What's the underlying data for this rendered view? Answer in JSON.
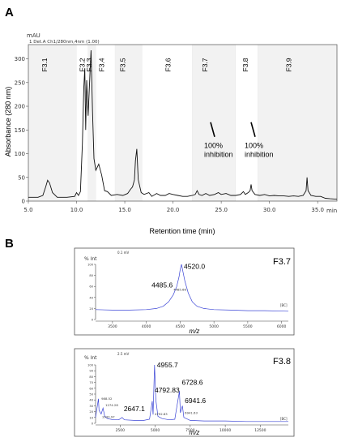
{
  "panel_labels": {
    "a": "A",
    "b": "B"
  },
  "chart_data": [
    {
      "type": "line",
      "panel": "A",
      "header_unit": "mAU",
      "header_detector": "1 Det.A Ch1/280nm,4nm (1.00)",
      "ylabel": "Absorbance (280 nm)",
      "xlabel": "Retention time (min)",
      "x_axis_unit": "min",
      "xlim": [
        5.0,
        37.0
      ],
      "ylim": [
        0,
        330
      ],
      "x_ticks": [
        5.0,
        10.0,
        15.0,
        20.0,
        25.0,
        30.0,
        35.0
      ],
      "x_tick_labels": [
        "5.0",
        "10.0",
        "15.0",
        "20.0",
        "25.0",
        "30.0",
        "35.0"
      ],
      "y_ticks": [
        0,
        50,
        100,
        150,
        200,
        250,
        300
      ],
      "y_tick_labels": [
        "0",
        "50",
        "100",
        "150",
        "200",
        "250",
        "300"
      ],
      "fractions": [
        {
          "label": "F3.1",
          "x": 6.7,
          "start": 5.0,
          "end": 10.0
        },
        {
          "label": "F3.2",
          "x": 10.6,
          "start": 10.0,
          "end": 11.2
        },
        {
          "label": "F3.3",
          "x": 11.3,
          "start": 11.2,
          "end": 12.0
        },
        {
          "label": "F3.4",
          "x": 12.6,
          "start": 12.0,
          "end": 14.0
        },
        {
          "label": "F3.5",
          "x": 14.8,
          "start": 14.0,
          "end": 16.8
        },
        {
          "label": "F3.6",
          "x": 19.5,
          "start": 16.8,
          "end": 22.0
        },
        {
          "label": "F3.7",
          "x": 23.3,
          "start": 22.0,
          "end": 26.5
        },
        {
          "label": "F3.8",
          "x": 27.5,
          "start": 26.5,
          "end": 28.8
        },
        {
          "label": "F3.9",
          "x": 32.0,
          "start": 28.8,
          "end": 37.0
        }
      ],
      "annotations": [
        {
          "text": "100%",
          "text2": "inhibition",
          "x": 24.4,
          "y": 115
        },
        {
          "text": "100%",
          "text2": "inhibition",
          "x": 28.6,
          "y": 115
        }
      ],
      "trace": [
        [
          5.0,
          8
        ],
        [
          6.0,
          8
        ],
        [
          6.5,
          12
        ],
        [
          6.8,
          30
        ],
        [
          7.0,
          44
        ],
        [
          7.2,
          38
        ],
        [
          7.5,
          18
        ],
        [
          8.0,
          8
        ],
        [
          9.0,
          8
        ],
        [
          9.8,
          10
        ],
        [
          10.0,
          18
        ],
        [
          10.2,
          12
        ],
        [
          10.4,
          20
        ],
        [
          10.6,
          120
        ],
        [
          10.75,
          240
        ],
        [
          10.85,
          280
        ],
        [
          10.95,
          150
        ],
        [
          11.05,
          255
        ],
        [
          11.2,
          180
        ],
        [
          11.35,
          250
        ],
        [
          11.5,
          318
        ],
        [
          11.65,
          190
        ],
        [
          11.8,
          90
        ],
        [
          12.0,
          65
        ],
        [
          12.3,
          78
        ],
        [
          12.6,
          55
        ],
        [
          12.9,
          22
        ],
        [
          13.2,
          20
        ],
        [
          13.6,
          12
        ],
        [
          14.2,
          14
        ],
        [
          14.8,
          12
        ],
        [
          15.3,
          16
        ],
        [
          15.6,
          25
        ],
        [
          15.8,
          30
        ],
        [
          16.0,
          45
        ],
        [
          16.1,
          85
        ],
        [
          16.25,
          110
        ],
        [
          16.4,
          45
        ],
        [
          16.7,
          18
        ],
        [
          17.0,
          14
        ],
        [
          17.5,
          18
        ],
        [
          17.8,
          10
        ],
        [
          18.3,
          16
        ],
        [
          18.7,
          12
        ],
        [
          19.2,
          12
        ],
        [
          19.6,
          16
        ],
        [
          20.0,
          14
        ],
        [
          20.5,
          12
        ],
        [
          21.0,
          10
        ],
        [
          21.5,
          10
        ],
        [
          22.0,
          12
        ],
        [
          22.3,
          14
        ],
        [
          22.5,
          22
        ],
        [
          22.7,
          14
        ],
        [
          23.0,
          12
        ],
        [
          23.4,
          16
        ],
        [
          23.8,
          12
        ],
        [
          24.3,
          14
        ],
        [
          24.7,
          18
        ],
        [
          25.0,
          14
        ],
        [
          25.5,
          16
        ],
        [
          26.0,
          12
        ],
        [
          26.5,
          12
        ],
        [
          27.0,
          14
        ],
        [
          27.3,
          20
        ],
        [
          27.5,
          14
        ],
        [
          27.8,
          18
        ],
        [
          28.0,
          22
        ],
        [
          28.1,
          35
        ],
        [
          28.2,
          22
        ],
        [
          28.5,
          14
        ],
        [
          29.0,
          12
        ],
        [
          29.5,
          14
        ],
        [
          30.0,
          11
        ],
        [
          30.5,
          12
        ],
        [
          31.0,
          11
        ],
        [
          31.5,
          11
        ],
        [
          32.0,
          10
        ],
        [
          32.5,
          11
        ],
        [
          33.0,
          10
        ],
        [
          33.5,
          12
        ],
        [
          33.8,
          22
        ],
        [
          33.9,
          50
        ],
        [
          34.0,
          22
        ],
        [
          34.3,
          12
        ],
        [
          34.8,
          10
        ],
        [
          35.3,
          10
        ],
        [
          35.8,
          6
        ],
        [
          36.3,
          5
        ],
        [
          37.0,
          4
        ]
      ]
    },
    {
      "type": "line",
      "panel": "B-top",
      "ylabel": "% Int",
      "xlabel": "m/z",
      "corner_label": "F3.7",
      "header_small": "0.1 mV",
      "right_small": "[BC]",
      "xlim": [
        3250,
        6100
      ],
      "ylim": [
        0,
        100
      ],
      "x_ticks": [
        3500,
        4000,
        4500,
        5000,
        5500,
        6000
      ],
      "x_tick_labels": [
        "3500",
        "4000",
        "4500",
        "5000",
        "5500",
        "6000"
      ],
      "y_ticks": [
        0,
        20,
        40,
        60,
        80,
        100
      ],
      "y_tick_labels": [
        "0",
        "20",
        "40",
        "60",
        "80",
        "100"
      ],
      "annotations": [
        {
          "text": "4485.6",
          "x": 4485.6,
          "y": 58,
          "size": "large"
        },
        {
          "text": "4520.0",
          "x": 4520.0,
          "y": 92,
          "size": "large"
        },
        {
          "text": "4485.66",
          "x": 4485.66,
          "y": 52,
          "size": "small"
        }
      ],
      "trace": [
        [
          3250,
          18
        ],
        [
          3500,
          17
        ],
        [
          3750,
          17
        ],
        [
          4000,
          18
        ],
        [
          4150,
          20
        ],
        [
          4250,
          24
        ],
        [
          4330,
          32
        ],
        [
          4400,
          45
        ],
        [
          4450,
          60
        ],
        [
          4485,
          78
        ],
        [
          4500,
          90
        ],
        [
          4520,
          100
        ],
        [
          4540,
          88
        ],
        [
          4570,
          70
        ],
        [
          4620,
          48
        ],
        [
          4680,
          32
        ],
        [
          4750,
          24
        ],
        [
          4850,
          20
        ],
        [
          5000,
          18
        ],
        [
          5250,
          17
        ],
        [
          5500,
          16
        ],
        [
          5750,
          16
        ],
        [
          6100,
          15
        ]
      ]
    },
    {
      "type": "line",
      "panel": "B-bottom",
      "ylabel": "% Int",
      "xlabel": "m/z",
      "corner_label": "F3.8",
      "header_small": "2.5 mV",
      "right_small": "[BC]",
      "xlim": [
        750,
        14500
      ],
      "ylim": [
        0,
        100
      ],
      "x_ticks": [
        2500,
        5000,
        7500,
        10000,
        12500
      ],
      "x_tick_labels": [
        "2500",
        "5000",
        "7500",
        "10000",
        "12500"
      ],
      "y_ticks": [
        0,
        10,
        20,
        30,
        40,
        50,
        60,
        70,
        80,
        90,
        100
      ],
      "y_tick_labels": [
        "0",
        "10",
        "20",
        "30",
        "40",
        "50",
        "60",
        "70",
        "80",
        "90",
        "100"
      ],
      "annotations": [
        {
          "text": "4955.7",
          "x": 4955.7,
          "y": 96,
          "size": "large"
        },
        {
          "text": "4792.83",
          "x": 4792.83,
          "y": 53,
          "size": "large"
        },
        {
          "text": "6728.6",
          "x": 6728.6,
          "y": 66,
          "size": "large"
        },
        {
          "text": "6941.6",
          "x": 6941.6,
          "y": 35,
          "size": "large"
        },
        {
          "text": "2647.1",
          "x": 2647.1,
          "y": 21,
          "size": "large"
        },
        {
          "text": "988.52",
          "x": 988.52,
          "y": 40,
          "size": "small"
        },
        {
          "text": "1274.28",
          "x": 1274.28,
          "y": 29,
          "size": "small"
        },
        {
          "text": "1033.97",
          "x": 1033.97,
          "y": 9,
          "size": "small"
        },
        {
          "text": "4792.83",
          "x": 4792.83,
          "y": 14,
          "size": "small"
        },
        {
          "text": "6941.63",
          "x": 6941.63,
          "y": 16,
          "size": "small"
        }
      ],
      "trace": [
        [
          750,
          10
        ],
        [
          950,
          42
        ],
        [
          1000,
          22
        ],
        [
          1150,
          16
        ],
        [
          1280,
          26
        ],
        [
          1400,
          12
        ],
        [
          1600,
          8
        ],
        [
          2000,
          6
        ],
        [
          2400,
          6
        ],
        [
          2647,
          10
        ],
        [
          2800,
          6
        ],
        [
          3500,
          5
        ],
        [
          4200,
          5
        ],
        [
          4600,
          7
        ],
        [
          4792,
          38
        ],
        [
          4850,
          15
        ],
        [
          4955,
          100
        ],
        [
          5050,
          40
        ],
        [
          5200,
          12
        ],
        [
          5500,
          8
        ],
        [
          6000,
          6
        ],
        [
          6400,
          7
        ],
        [
          6728,
          55
        ],
        [
          6800,
          18
        ],
        [
          6941,
          30
        ],
        [
          7050,
          10
        ],
        [
          7500,
          5
        ],
        [
          8500,
          4
        ],
        [
          10000,
          4
        ],
        [
          11500,
          3
        ],
        [
          13000,
          3
        ],
        [
          14500,
          3
        ]
      ]
    }
  ]
}
